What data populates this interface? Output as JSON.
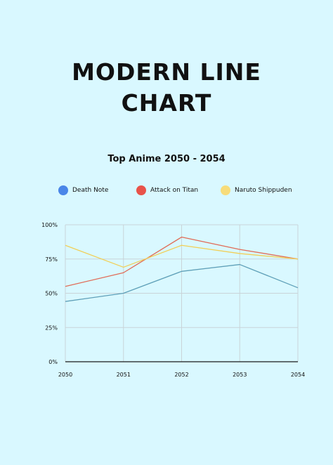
{
  "page": {
    "title_line1": "MODERN LINE",
    "title_line2": "CHART"
  },
  "chart_data": {
    "type": "line",
    "title": "Top Anime 2050 - 2054",
    "xlabel": "",
    "ylabel": "",
    "x": [
      "2050",
      "2051",
      "2052",
      "2053",
      "2054"
    ],
    "ylim": [
      0,
      100
    ],
    "yticks": [
      "0%",
      "25%",
      "50%",
      "75%",
      "100%"
    ],
    "grid": true,
    "legend_position": "top",
    "series": [
      {
        "name": "Death Note",
        "color": "#5fa0b8",
        "legend_color": "#4a86e8",
        "values": [
          44,
          50,
          66,
          71,
          54
        ]
      },
      {
        "name": "Attack on Titan",
        "color": "#e06c57",
        "legend_color": "#e8534a",
        "values": [
          55,
          65,
          91,
          82,
          75
        ]
      },
      {
        "name": "Naruto Shippuden",
        "color": "#f1cf57",
        "legend_color": "#f7dc7a",
        "values": [
          85,
          69,
          85,
          79,
          75
        ]
      }
    ]
  }
}
